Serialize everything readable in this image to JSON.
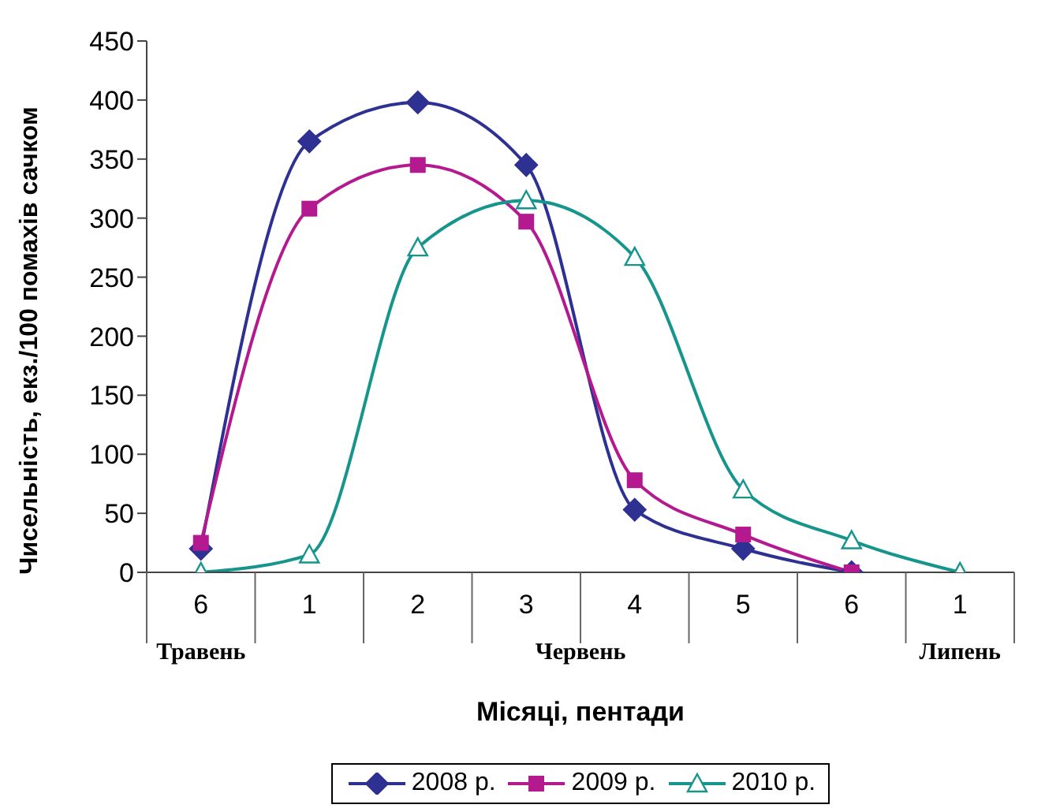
{
  "chart_data": {
    "type": "line",
    "xlabel": "Місяці, пентади",
    "ylabel": "Чисельність, екз./100 помахів сачком",
    "categories": [
      "6",
      "1",
      "2",
      "3",
      "4",
      "5",
      "6",
      "1"
    ],
    "series": [
      {
        "name": "2008 р.",
        "color": "#2e3192",
        "marker": "diamond",
        "values": [
          20,
          365,
          398,
          345,
          53,
          20,
          0,
          null
        ]
      },
      {
        "name": "2009 р.",
        "color": "#b5198f",
        "marker": "square",
        "values": [
          25,
          308,
          345,
          297,
          78,
          32,
          0,
          null
        ]
      },
      {
        "name": "2010 р.",
        "color": "#16958c",
        "marker": "triangle",
        "values": [
          0,
          15,
          275,
          315,
          267,
          70,
          27,
          0
        ]
      }
    ],
    "annotations": [
      "Травень",
      "Червень",
      "Липень"
    ],
    "ylim": [
      0,
      450
    ],
    "yticks": [
      0,
      50,
      100,
      150,
      200,
      250,
      300,
      350,
      400,
      450
    ],
    "legend": "bottom"
  }
}
